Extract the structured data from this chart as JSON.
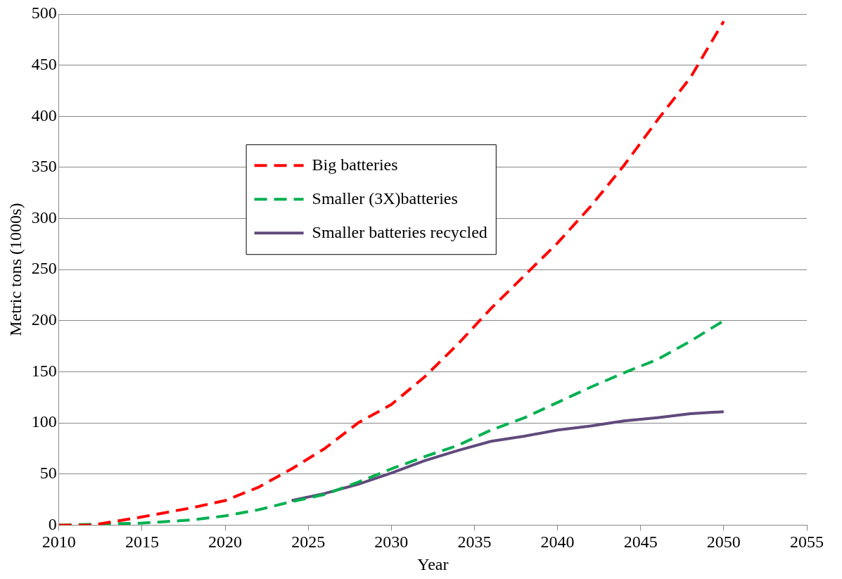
{
  "chart_data": {
    "type": "line",
    "xlabel": "Year",
    "ylabel": "Metric tons (1000s)",
    "xlim": [
      2010,
      2055
    ],
    "xticks": [
      2010,
      2015,
      2020,
      2025,
      2030,
      2035,
      2040,
      2045,
      2050,
      2055
    ],
    "ylim": [
      0,
      500
    ],
    "yticks": [
      0,
      50,
      100,
      150,
      200,
      250,
      300,
      350,
      400,
      450,
      500
    ],
    "grid": "y",
    "legend": "top left",
    "marker": "none",
    "series": [
      {
        "name": "Big batteries",
        "color": "#ff0000",
        "line_style": "dashed",
        "x": [
          2010,
          2012,
          2015,
          2018,
          2020,
          2022,
          2024,
          2026,
          2028,
          2030,
          2032,
          2034,
          2036,
          2038,
          2040,
          2042,
          2044,
          2046,
          2048,
          2050
        ],
        "values": [
          0,
          0,
          8,
          17,
          24,
          37,
          55,
          75,
          100,
          118,
          145,
          177,
          212,
          244,
          276,
          312,
          352,
          396,
          438,
          493
        ]
      },
      {
        "name": "Smaller (3X)batteries",
        "color": "#00b050",
        "line_style": "dashed",
        "x": [
          2010,
          2015,
          2018,
          2020,
          2022,
          2024,
          2026,
          2028,
          2030,
          2032,
          2034,
          2036,
          2038,
          2040,
          2042,
          2044,
          2046,
          2048,
          2050
        ],
        "values": [
          0,
          2,
          5,
          9,
          15,
          23,
          30,
          42,
          55,
          67,
          78,
          93,
          105,
          120,
          135,
          149,
          162,
          180,
          200
        ]
      },
      {
        "name": "Smaller batteries recycled",
        "color": "#604a7b",
        "line_style": "solid",
        "x": [
          2024,
          2026,
          2028,
          2030,
          2032,
          2034,
          2036,
          2038,
          2040,
          2042,
          2044,
          2046,
          2048,
          2050
        ],
        "values": [
          24,
          31,
          40,
          51,
          63,
          73,
          82,
          87,
          93,
          97,
          102,
          105,
          109,
          111
        ]
      }
    ]
  }
}
